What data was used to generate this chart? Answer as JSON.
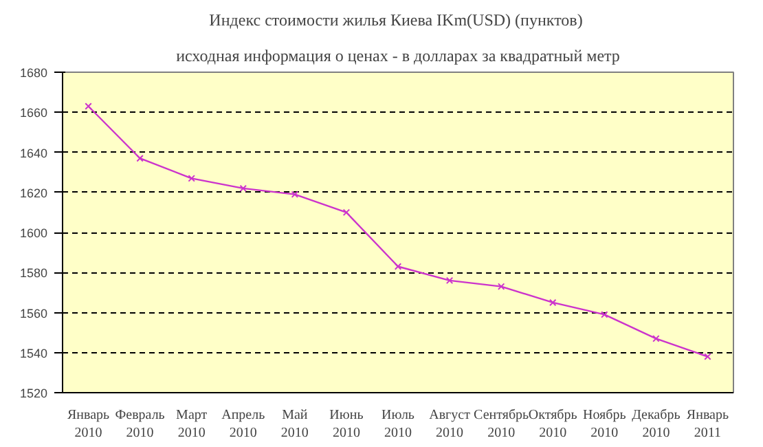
{
  "chart_data": {
    "type": "line",
    "title": "Индекс стоимости жилья Киева IKm(USD)  (пунктов)",
    "subtitle": "исходная информация о ценах - в долларах за квадратный метр",
    "categories": [
      "Январь\n2010",
      "Февраль\n2010",
      "Март\n2010",
      "Апрель\n2010",
      "Май\n2010",
      "Июнь\n2010",
      "Июль\n2010",
      "Август\n2010",
      "Сентябрь\n2010",
      "Октябрь\n2010",
      "Ноябрь\n2010",
      "Декабрь\n2010",
      "Январь\n2011"
    ],
    "series": [
      {
        "color": "#cc33cc",
        "values": [
          1663,
          1637,
          1627,
          1622,
          1619,
          1610,
          1583,
          1576,
          1573,
          1565,
          1559,
          1547,
          1538
        ]
      }
    ],
    "ylim": [
      1520,
      1680
    ],
    "yticks": [
      1520,
      1540,
      1560,
      1580,
      1600,
      1620,
      1640,
      1660,
      1680
    ],
    "grid": "y",
    "marker": "cross",
    "line_style": "solid"
  }
}
